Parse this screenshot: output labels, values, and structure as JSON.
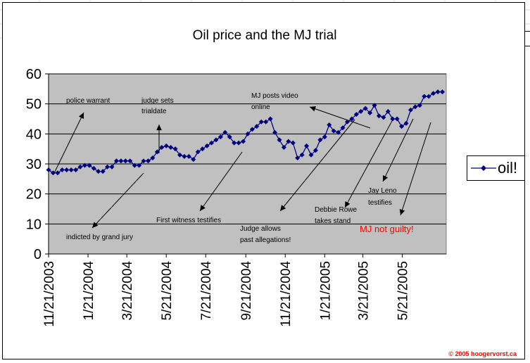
{
  "chart_data": {
    "type": "line",
    "title": "Oil price and the MJ trial",
    "xlabel": "",
    "ylabel": "",
    "ylim": [
      0,
      60
    ],
    "yticks": [
      0,
      10,
      20,
      30,
      40,
      50,
      60
    ],
    "xlim": [
      "2003-11-21",
      "2005-07-28"
    ],
    "xtick_labels": [
      "11/21/2003",
      "1/21/2004",
      "3/21/2004",
      "5/21/2004",
      "7/21/2004",
      "9/21/2004",
      "11/21/2004",
      "1/21/2005",
      "3/21/2005",
      "5/21/2005"
    ],
    "xtick_dates": [
      "2003-11-21",
      "2004-01-21",
      "2004-03-21",
      "2004-05-21",
      "2004-07-21",
      "2004-09-21",
      "2004-11-21",
      "2005-01-21",
      "2005-03-21",
      "2005-05-21"
    ],
    "grid": "horizontal",
    "plot_background": "#c0c0c0",
    "legend_position": "right",
    "series": [
      {
        "name": "oil!",
        "color": "#000080",
        "marker": "diamond",
        "x": [
          "2003-11-21",
          "2003-11-28",
          "2003-12-05",
          "2003-12-12",
          "2003-12-19",
          "2003-12-26",
          "2004-01-02",
          "2004-01-09",
          "2004-01-16",
          "2004-01-23",
          "2004-01-30",
          "2004-02-06",
          "2004-02-13",
          "2004-02-20",
          "2004-02-27",
          "2004-03-05",
          "2004-03-12",
          "2004-03-19",
          "2004-03-26",
          "2004-04-02",
          "2004-04-09",
          "2004-04-16",
          "2004-04-23",
          "2004-04-30",
          "2004-05-07",
          "2004-05-14",
          "2004-05-21",
          "2004-05-28",
          "2004-06-04",
          "2004-06-11",
          "2004-06-18",
          "2004-06-25",
          "2004-07-02",
          "2004-07-09",
          "2004-07-16",
          "2004-07-23",
          "2004-07-30",
          "2004-08-06",
          "2004-08-13",
          "2004-08-20",
          "2004-08-27",
          "2004-09-03",
          "2004-09-10",
          "2004-09-17",
          "2004-09-24",
          "2004-10-01",
          "2004-10-08",
          "2004-10-15",
          "2004-10-22",
          "2004-10-29",
          "2004-11-05",
          "2004-11-12",
          "2004-11-19",
          "2004-11-26",
          "2004-12-03",
          "2004-12-10",
          "2004-12-17",
          "2004-12-24",
          "2004-12-31",
          "2005-01-07",
          "2005-01-14",
          "2005-01-21",
          "2005-01-28",
          "2005-02-04",
          "2005-02-11",
          "2005-02-18",
          "2005-02-25",
          "2005-03-04",
          "2005-03-11",
          "2005-03-18",
          "2005-03-25",
          "2005-04-01",
          "2005-04-08",
          "2005-04-15",
          "2005-04-22",
          "2005-04-29",
          "2005-05-06",
          "2005-05-13",
          "2005-05-20",
          "2005-05-27",
          "2005-06-03",
          "2005-06-10",
          "2005-06-17",
          "2005-06-24",
          "2005-07-01",
          "2005-07-08",
          "2005-07-15",
          "2005-07-22"
        ],
        "values": [
          28,
          27,
          27,
          28,
          28,
          28,
          28,
          29,
          29.5,
          29.5,
          28.5,
          27.5,
          27.5,
          29,
          29,
          31,
          31,
          31,
          31,
          29.5,
          29.5,
          31,
          31,
          32,
          34,
          35.5,
          36,
          35.5,
          35,
          33,
          32.5,
          32.5,
          31.5,
          34,
          35,
          36,
          37,
          38,
          39,
          40.5,
          39,
          37,
          37,
          37.5,
          40,
          41.5,
          42.5,
          44,
          44,
          45,
          40.5,
          38,
          35.5,
          37.5,
          37,
          32,
          33,
          36,
          33,
          34.5,
          38,
          39,
          43,
          41,
          40.5,
          42,
          44,
          45,
          46.5,
          47.5,
          48.5,
          47,
          49.5,
          46,
          45.5,
          47.5,
          45,
          45,
          42.5,
          43.5,
          48,
          49,
          49.5,
          52.5,
          52.5,
          53.5,
          54,
          54
        ]
      }
    ],
    "annotations": [
      {
        "text": "police warrant",
        "date": "2003-11-21",
        "arrow": true
      },
      {
        "text": "indicted by grand jury",
        "date": "2004-04-30",
        "arrow": true
      },
      {
        "text": "judge sets trialdate",
        "date": "2004-04-30",
        "arrow": true
      },
      {
        "text": "First witness testifies",
        "date": "2004-09-03",
        "arrow": true
      },
      {
        "text": "MJ posts video online",
        "date": "2005-03-18",
        "arrow": true
      },
      {
        "text": "Judge allows past allegations!",
        "date": "2005-03-04",
        "arrow": true
      },
      {
        "text": "Debbie Rowe takes stand",
        "date": "2005-04-08",
        "arrow": true
      },
      {
        "text": "Jay Leno testifies",
        "date": "2005-05-13",
        "arrow": true
      },
      {
        "text": "MJ not guilty!",
        "date": "2005-06-10",
        "arrow": true,
        "color": "#ff0000"
      }
    ],
    "footer": "© 2005 hoogervorst.ca",
    "footer_color": "#ff0000"
  }
}
